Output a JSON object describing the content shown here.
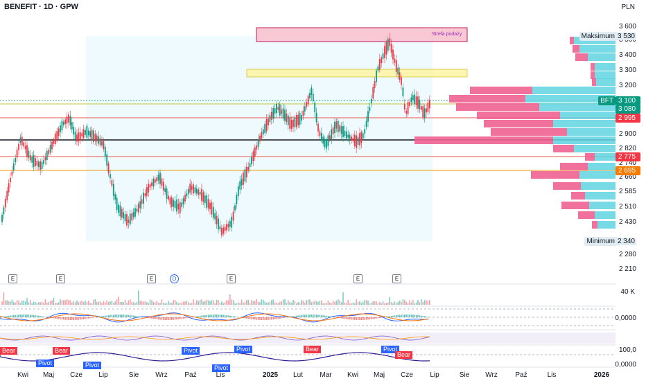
{
  "header": {
    "title": "BENEFIT · 1D · GPW",
    "currency": "PLN"
  },
  "y_axis": {
    "ticks": [
      "3 600",
      "3 500",
      "3 400",
      "3 300",
      "3 200",
      "2 900",
      "2 820",
      "2 740",
      "2 660",
      "2 585",
      "2 510",
      "2 430",
      "2 280",
      "2 210"
    ],
    "max_label": "Maksimum",
    "max_value": "3 530",
    "min_label": "Minimum",
    "min_value": "2 340"
  },
  "price_badges": [
    {
      "text": "BFT",
      "value": "3 100",
      "color": "#089981"
    },
    {
      "text": "",
      "value": "3 080",
      "color": "#089981"
    },
    {
      "text": "",
      "value": "2 995",
      "color": "#f23645"
    },
    {
      "text": "",
      "value": "2 775",
      "color": "#f23645"
    },
    {
      "text": "",
      "value": "2 695",
      "color": "#f57c00"
    }
  ],
  "zones": {
    "supply_label": "Strefa podaży"
  },
  "events": [
    "E",
    "E",
    "E",
    "D",
    "E",
    "E",
    "E"
  ],
  "volume_label": "40 K",
  "indicator_labels": {
    "macd_zero": "0,0000",
    "rsi_level": "100,0",
    "osc_zero": "0,0000"
  },
  "pivot_bear_labels": [
    "Bear",
    "Bear",
    "Pivot",
    "Pivot",
    "Pivot",
    "Pivot",
    "Pivot",
    "Pivot",
    "Bear",
    "Bear"
  ],
  "x_axis": {
    "ticks": [
      "Kwi",
      "Maj",
      "Cze",
      "Lip",
      "Sie",
      "Wrz",
      "Paź",
      "Lis",
      "2025",
      "Lut",
      "Mar",
      "Kwi",
      "Maj",
      "Cze",
      "Lip",
      "Sie",
      "Wrz",
      "Paź",
      "Lis",
      "2026"
    ],
    "bold": [
      "2025",
      "2026"
    ]
  },
  "colors": {
    "up": "#089981",
    "down": "#f23645",
    "vp_up": "#5fd3e0",
    "vp_down": "#f06292"
  }
}
